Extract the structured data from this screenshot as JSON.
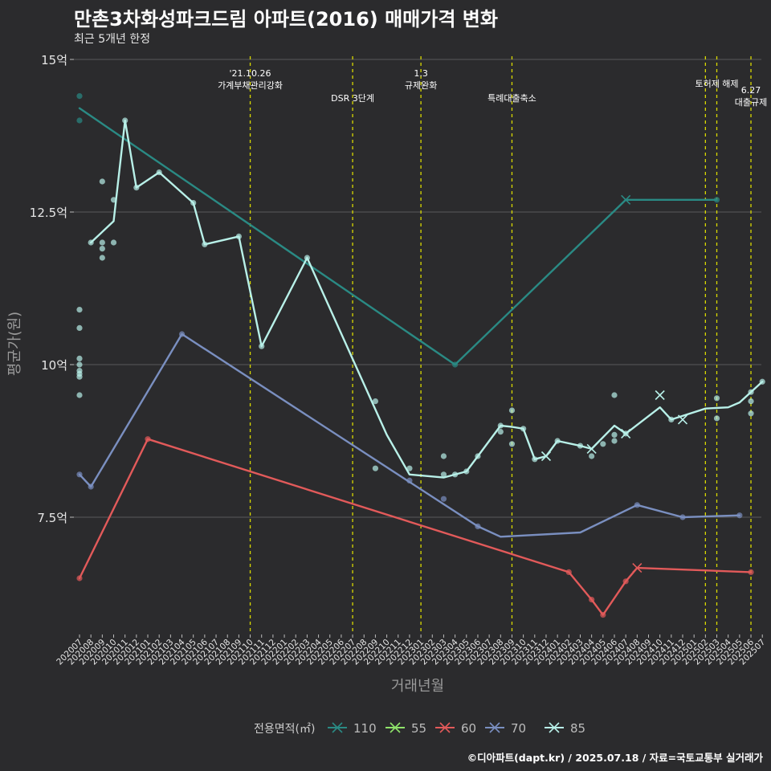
{
  "header": {
    "title": "만촌3차화성파크드림 아파트(2016) 매매가격 변화",
    "subtitle": "최근 5개년 한정"
  },
  "caption": "©디아파트(dapt.kr) / 2025.07.18 / 자료=국토교통부 실거래가",
  "colors": {
    "background": "#2b2b2d",
    "grid": "#5a5a5a",
    "vline": "#d9d900",
    "s110": "#2a8a84",
    "s55": "#8fe36a",
    "s60": "#e25a5a",
    "s70": "#7a8fc0",
    "s85": "#b8f0e8"
  },
  "chart_data": {
    "type": "line",
    "xlabel": "거래년월",
    "ylabel": "평균가(원)",
    "yticks": [
      {
        "value": 7.5,
        "label": "7.5억"
      },
      {
        "value": 10,
        "label": "10억"
      },
      {
        "value": 12.5,
        "label": "12.5억"
      },
      {
        "value": 15,
        "label": "15억"
      }
    ],
    "ylim": [
      5.3,
      15.1
    ],
    "x_categories": [
      "202007",
      "202008",
      "202009",
      "202010",
      "202011",
      "202012",
      "202101",
      "202102",
      "202103",
      "202104",
      "202105",
      "202106",
      "202107",
      "202108",
      "202109",
      "202110",
      "202111",
      "202112",
      "202201",
      "202202",
      "202203",
      "202204",
      "202205",
      "202206",
      "202207",
      "202208",
      "202209",
      "202210",
      "202211",
      "202212",
      "202301",
      "202302",
      "202303",
      "202304",
      "202305",
      "202306",
      "202307",
      "202308",
      "202309",
      "202310",
      "202311",
      "202312",
      "202401",
      "202402",
      "202403",
      "202404",
      "202405",
      "202406",
      "202407",
      "202408",
      "202409",
      "202410",
      "202411",
      "202412",
      "202501",
      "202502",
      "202503",
      "202504",
      "202505",
      "202506",
      "202507"
    ],
    "grid": true,
    "legend": {
      "title": "전용면적(㎡)",
      "position": "bottom",
      "items": [
        "110",
        "55",
        "60",
        "70",
        "85"
      ]
    },
    "annotations": [
      {
        "month": "202110",
        "lines": [
          "'21.10.26",
          "가계부채관리강화"
        ],
        "row": 0
      },
      {
        "month": "202207",
        "lines": [
          "DSR 3단계"
        ],
        "row": 2
      },
      {
        "month": "202301",
        "lines": [
          "1.3",
          "규제완화"
        ],
        "row": 0
      },
      {
        "month": "202309",
        "lines": [
          "특례대출축소"
        ],
        "row": 2
      },
      {
        "month": "202502",
        "lines": [],
        "row": 0
      },
      {
        "month": "202503",
        "lines": [
          "토허제 해제"
        ],
        "row": 1
      },
      {
        "month": "202506",
        "lines": [
          "6.27",
          "대출규제"
        ],
        "row": 3
      }
    ],
    "series": [
      {
        "name": "110",
        "color_key": "s110",
        "line": [
          [
            "202007",
            14.2
          ],
          [
            "202304",
            10.0
          ],
          [
            "202407",
            12.7
          ],
          [
            "202503",
            12.7
          ]
        ],
        "points": [
          [
            "202007",
            14.4
          ],
          [
            "202007",
            14.0
          ],
          [
            "202304",
            10.0
          ],
          [
            "202503",
            12.7
          ]
        ],
        "crosses": [
          [
            "202407",
            12.7
          ]
        ]
      },
      {
        "name": "55",
        "color_key": "s55",
        "line": [],
        "points": [],
        "crosses": []
      },
      {
        "name": "60",
        "color_key": "s60",
        "line": [
          [
            "202007",
            6.5
          ],
          [
            "202101",
            8.78
          ],
          [
            "202402",
            6.6
          ],
          [
            "202404",
            6.15
          ],
          [
            "202405",
            5.9
          ],
          [
            "202407",
            6.45
          ],
          [
            "202408",
            6.67
          ],
          [
            "202506",
            6.6
          ]
        ],
        "points": [
          [
            "202007",
            6.5
          ],
          [
            "202101",
            8.78
          ],
          [
            "202402",
            6.6
          ],
          [
            "202404",
            6.15
          ],
          [
            "202405",
            5.9
          ],
          [
            "202407",
            6.45
          ],
          [
            "202506",
            6.6
          ]
        ],
        "crosses": [
          [
            "202408",
            6.67
          ]
        ]
      },
      {
        "name": "70",
        "color_key": "s70",
        "line": [
          [
            "202007",
            8.2
          ],
          [
            "202008",
            8.0
          ],
          [
            "202104",
            10.5
          ],
          [
            "202306",
            7.35
          ],
          [
            "202308",
            7.18
          ],
          [
            "202403",
            7.25
          ],
          [
            "202408",
            7.7
          ],
          [
            "202412",
            7.5
          ],
          [
            "202505",
            7.53
          ]
        ],
        "points": [
          [
            "202007",
            8.2
          ],
          [
            "202008",
            8.0
          ],
          [
            "202104",
            10.5
          ],
          [
            "202212",
            8.1
          ],
          [
            "202303",
            7.8
          ],
          [
            "202306",
            7.35
          ],
          [
            "202408",
            7.7
          ],
          [
            "202412",
            7.5
          ],
          [
            "202505",
            7.53
          ]
        ],
        "crosses": []
      },
      {
        "name": "85",
        "color_key": "s85",
        "line": [
          [
            "202008",
            12.0
          ],
          [
            "202010",
            12.35
          ],
          [
            "202011",
            14.0
          ],
          [
            "202012",
            12.9
          ],
          [
            "202102",
            13.15
          ],
          [
            "202105",
            12.65
          ],
          [
            "202106",
            11.97
          ],
          [
            "202109",
            12.1
          ],
          [
            "202111",
            10.3
          ],
          [
            "202203",
            11.75
          ],
          [
            "202210",
            8.85
          ],
          [
            "202212",
            8.2
          ],
          [
            "202303",
            8.15
          ],
          [
            "202305",
            8.25
          ],
          [
            "202306",
            8.5
          ],
          [
            "202308",
            9.0
          ],
          [
            "202309",
            8.98
          ],
          [
            "202310",
            8.95
          ],
          [
            "202311",
            8.45
          ],
          [
            "202312",
            8.5
          ],
          [
            "202401",
            8.75
          ],
          [
            "202403",
            8.67
          ],
          [
            "202404",
            8.62
          ],
          [
            "202406",
            9.0
          ],
          [
            "202407",
            8.87
          ],
          [
            "202410",
            9.3
          ],
          [
            "202411",
            9.1
          ],
          [
            "202502",
            9.28
          ],
          [
            "202504",
            9.3
          ],
          [
            "202505",
            9.38
          ],
          [
            "202507",
            9.72
          ]
        ],
        "points": [
          [
            "202007",
            9.5
          ],
          [
            "202007",
            9.85
          ],
          [
            "202007",
            9.9
          ],
          [
            "202007",
            10.0
          ],
          [
            "202007",
            10.1
          ],
          [
            "202007",
            10.6
          ],
          [
            "202007",
            10.9
          ],
          [
            "202007",
            9.8
          ],
          [
            "202008",
            12.0
          ],
          [
            "202009",
            12.0
          ],
          [
            "202009",
            11.9
          ],
          [
            "202009",
            11.75
          ],
          [
            "202009",
            13.0
          ],
          [
            "202010",
            12.0
          ],
          [
            "202010",
            12.7
          ],
          [
            "202011",
            14.0
          ],
          [
            "202012",
            12.9
          ],
          [
            "202102",
            13.15
          ],
          [
            "202105",
            12.65
          ],
          [
            "202106",
            11.97
          ],
          [
            "202109",
            12.1
          ],
          [
            "202111",
            10.3
          ],
          [
            "202203",
            11.75
          ],
          [
            "202209",
            8.3
          ],
          [
            "202209",
            9.4
          ],
          [
            "202212",
            8.3
          ],
          [
            "202303",
            8.5
          ],
          [
            "202303",
            8.2
          ],
          [
            "202304",
            8.2
          ],
          [
            "202305",
            8.25
          ],
          [
            "202306",
            8.5
          ],
          [
            "202308",
            9.0
          ],
          [
            "202308",
            8.9
          ],
          [
            "202309",
            9.25
          ],
          [
            "202309",
            8.7
          ],
          [
            "202310",
            8.95
          ],
          [
            "202311",
            8.45
          ],
          [
            "202401",
            8.75
          ],
          [
            "202403",
            8.67
          ],
          [
            "202404",
            8.5
          ],
          [
            "202405",
            8.7
          ],
          [
            "202406",
            9.5
          ],
          [
            "202406",
            8.85
          ],
          [
            "202406",
            8.75
          ],
          [
            "202407",
            8.87
          ],
          [
            "202411",
            9.1
          ],
          [
            "202503",
            9.45
          ],
          [
            "202503",
            9.12
          ],
          [
            "202506",
            9.55
          ],
          [
            "202506",
            9.4
          ],
          [
            "202506",
            9.2
          ],
          [
            "202507",
            9.72
          ]
        ],
        "crosses": [
          [
            "202312",
            8.5
          ],
          [
            "202404",
            8.62
          ],
          [
            "202407",
            8.87
          ],
          [
            "202410",
            9.5
          ],
          [
            "202412",
            9.1
          ]
        ]
      }
    ]
  }
}
